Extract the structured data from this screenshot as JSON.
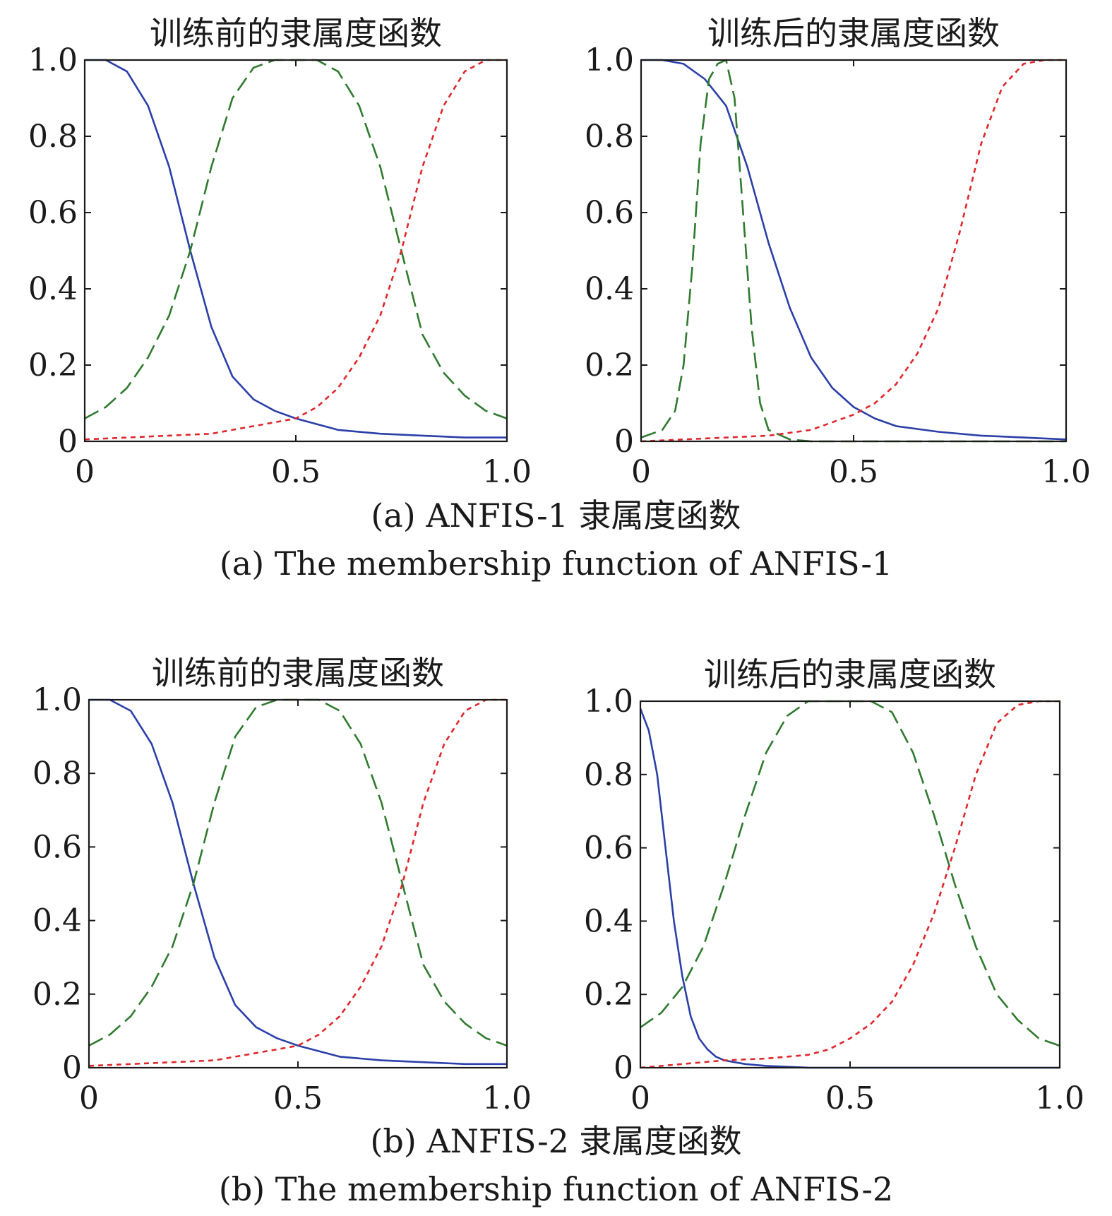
{
  "captions": {
    "a_zh": "(a) ANFIS-1 隶属度函数",
    "a_en": "(a) The membership function of ANFIS-1",
    "b_zh": "(b) ANFIS-2 隶属度函数",
    "b_en": "(b) The membership function of ANFIS-2"
  },
  "colors": {
    "mf1": "#2b3fa8",
    "mf2": "#2f7a2f",
    "mf3": "#e0262b",
    "axis": "#1a1a1a"
  },
  "chart_data": [
    {
      "type": "line",
      "title": "训练前的隶属度函数",
      "xlim": [
        0,
        1
      ],
      "ylim": [
        0,
        1
      ],
      "xticks": [
        "0",
        "0.5",
        "1.0"
      ],
      "yticks": [
        "0",
        "0.2",
        "0.4",
        "0.6",
        "0.8",
        "1.0"
      ],
      "series": [
        {
          "style": "solid",
          "x": [
            0,
            0.05,
            0.1,
            0.15,
            0.2,
            0.25,
            0.3,
            0.35,
            0.4,
            0.45,
            0.5,
            0.6,
            0.7,
            0.8,
            0.9,
            1.0
          ],
          "values": [
            1.0,
            1.0,
            0.97,
            0.88,
            0.72,
            0.5,
            0.3,
            0.17,
            0.11,
            0.08,
            0.06,
            0.03,
            0.02,
            0.015,
            0.01,
            0.01
          ]
        },
        {
          "style": "dashed",
          "x": [
            0,
            0.05,
            0.1,
            0.15,
            0.2,
            0.25,
            0.3,
            0.35,
            0.4,
            0.45,
            0.5,
            0.55,
            0.6,
            0.65,
            0.7,
            0.75,
            0.8,
            0.85,
            0.9,
            0.95,
            1.0
          ],
          "values": [
            0.06,
            0.09,
            0.14,
            0.22,
            0.33,
            0.5,
            0.72,
            0.9,
            0.98,
            1.0,
            1.0,
            1.0,
            0.97,
            0.88,
            0.72,
            0.5,
            0.28,
            0.18,
            0.12,
            0.08,
            0.06
          ]
        },
        {
          "style": "dotted",
          "x": [
            0,
            0.1,
            0.2,
            0.3,
            0.4,
            0.45,
            0.5,
            0.55,
            0.6,
            0.65,
            0.7,
            0.75,
            0.8,
            0.85,
            0.9,
            0.95,
            1.0
          ],
          "values": [
            0.005,
            0.01,
            0.015,
            0.02,
            0.04,
            0.05,
            0.06,
            0.09,
            0.14,
            0.22,
            0.33,
            0.5,
            0.72,
            0.88,
            0.97,
            1.0,
            1.0
          ]
        }
      ]
    },
    {
      "type": "line",
      "title": "训练后的隶属度函数",
      "xlim": [
        0,
        1
      ],
      "ylim": [
        0,
        1
      ],
      "xticks": [
        "0",
        "0.5",
        "1.0"
      ],
      "yticks": [
        "0",
        "0.2",
        "0.4",
        "0.6",
        "0.8",
        "1.0"
      ],
      "series": [
        {
          "style": "solid",
          "x": [
            0,
            0.05,
            0.1,
            0.15,
            0.2,
            0.25,
            0.3,
            0.35,
            0.4,
            0.45,
            0.5,
            0.55,
            0.6,
            0.7,
            0.8,
            0.9,
            1.0
          ],
          "values": [
            1.0,
            1.0,
            0.99,
            0.95,
            0.88,
            0.72,
            0.52,
            0.35,
            0.22,
            0.14,
            0.09,
            0.06,
            0.04,
            0.025,
            0.015,
            0.01,
            0.005
          ]
        },
        {
          "style": "dashed",
          "x": [
            0,
            0.05,
            0.08,
            0.1,
            0.12,
            0.14,
            0.16,
            0.18,
            0.2,
            0.22,
            0.24,
            0.26,
            0.28,
            0.3,
            0.35,
            0.4,
            0.5,
            0.7,
            1.0
          ],
          "values": [
            0.01,
            0.03,
            0.08,
            0.2,
            0.45,
            0.78,
            0.95,
            0.99,
            1.0,
            0.9,
            0.6,
            0.3,
            0.1,
            0.03,
            0.005,
            0.0,
            0.0,
            0.0,
            0.0
          ]
        },
        {
          "style": "dotted",
          "x": [
            0,
            0.1,
            0.2,
            0.3,
            0.4,
            0.45,
            0.5,
            0.55,
            0.6,
            0.65,
            0.7,
            0.75,
            0.8,
            0.85,
            0.9,
            0.95,
            1.0
          ],
          "values": [
            0.0,
            0.005,
            0.01,
            0.015,
            0.03,
            0.05,
            0.07,
            0.1,
            0.15,
            0.23,
            0.35,
            0.55,
            0.78,
            0.93,
            0.99,
            1.0,
            1.0
          ]
        }
      ]
    },
    {
      "type": "line",
      "title": "训练前的隶属度函数",
      "xlim": [
        0,
        1
      ],
      "ylim": [
        0,
        1
      ],
      "xticks": [
        "0",
        "0.5",
        "1.0"
      ],
      "yticks": [
        "0",
        "0.2",
        "0.4",
        "0.6",
        "0.8",
        "1.0"
      ],
      "series": [
        {
          "style": "solid",
          "x": [
            0,
            0.05,
            0.1,
            0.15,
            0.2,
            0.25,
            0.3,
            0.35,
            0.4,
            0.45,
            0.5,
            0.6,
            0.7,
            0.8,
            0.9,
            1.0
          ],
          "values": [
            1.0,
            1.0,
            0.97,
            0.88,
            0.72,
            0.5,
            0.3,
            0.17,
            0.11,
            0.08,
            0.06,
            0.03,
            0.02,
            0.015,
            0.01,
            0.01
          ]
        },
        {
          "style": "dashed",
          "x": [
            0,
            0.05,
            0.1,
            0.15,
            0.2,
            0.25,
            0.3,
            0.35,
            0.4,
            0.45,
            0.5,
            0.55,
            0.6,
            0.65,
            0.7,
            0.75,
            0.8,
            0.85,
            0.9,
            0.95,
            1.0
          ],
          "values": [
            0.06,
            0.09,
            0.14,
            0.22,
            0.33,
            0.5,
            0.72,
            0.9,
            0.98,
            1.0,
            1.0,
            1.0,
            0.97,
            0.88,
            0.72,
            0.5,
            0.28,
            0.18,
            0.12,
            0.08,
            0.06
          ]
        },
        {
          "style": "dotted",
          "x": [
            0,
            0.1,
            0.2,
            0.3,
            0.4,
            0.45,
            0.5,
            0.55,
            0.6,
            0.65,
            0.7,
            0.75,
            0.8,
            0.85,
            0.9,
            0.95,
            1.0
          ],
          "values": [
            0.005,
            0.01,
            0.015,
            0.02,
            0.04,
            0.05,
            0.06,
            0.09,
            0.14,
            0.22,
            0.33,
            0.5,
            0.72,
            0.88,
            0.97,
            1.0,
            1.0
          ]
        }
      ]
    },
    {
      "type": "line",
      "title": "训练后的隶属度函数",
      "xlim": [
        0,
        1
      ],
      "ylim": [
        0,
        1
      ],
      "xticks": [
        "0",
        "0.5",
        "1.0"
      ],
      "yticks": [
        "0",
        "0.2",
        "0.4",
        "0.6",
        "0.8",
        "1.0"
      ],
      "series": [
        {
          "style": "solid",
          "x": [
            0,
            0.02,
            0.04,
            0.06,
            0.08,
            0.1,
            0.12,
            0.14,
            0.16,
            0.18,
            0.2,
            0.25,
            0.3,
            0.4,
            0.6,
            1.0
          ],
          "values": [
            0.98,
            0.92,
            0.8,
            0.6,
            0.4,
            0.25,
            0.14,
            0.08,
            0.05,
            0.03,
            0.02,
            0.01,
            0.005,
            0.0,
            0.0,
            0.0
          ]
        },
        {
          "style": "dashed",
          "x": [
            0,
            0.05,
            0.1,
            0.15,
            0.2,
            0.25,
            0.3,
            0.35,
            0.4,
            0.45,
            0.5,
            0.55,
            0.6,
            0.65,
            0.7,
            0.75,
            0.8,
            0.85,
            0.9,
            0.95,
            1.0
          ],
          "values": [
            0.11,
            0.15,
            0.22,
            0.33,
            0.5,
            0.69,
            0.86,
            0.96,
            1.0,
            1.0,
            1.0,
            1.0,
            0.97,
            0.86,
            0.69,
            0.5,
            0.33,
            0.2,
            0.13,
            0.08,
            0.06
          ]
        },
        {
          "style": "dotted",
          "x": [
            0,
            0.1,
            0.2,
            0.3,
            0.4,
            0.45,
            0.5,
            0.55,
            0.6,
            0.65,
            0.7,
            0.75,
            0.8,
            0.85,
            0.9,
            0.95,
            1.0
          ],
          "values": [
            0.0,
            0.01,
            0.02,
            0.025,
            0.035,
            0.05,
            0.08,
            0.12,
            0.18,
            0.28,
            0.42,
            0.6,
            0.8,
            0.94,
            0.99,
            1.0,
            1.0
          ]
        }
      ]
    }
  ]
}
